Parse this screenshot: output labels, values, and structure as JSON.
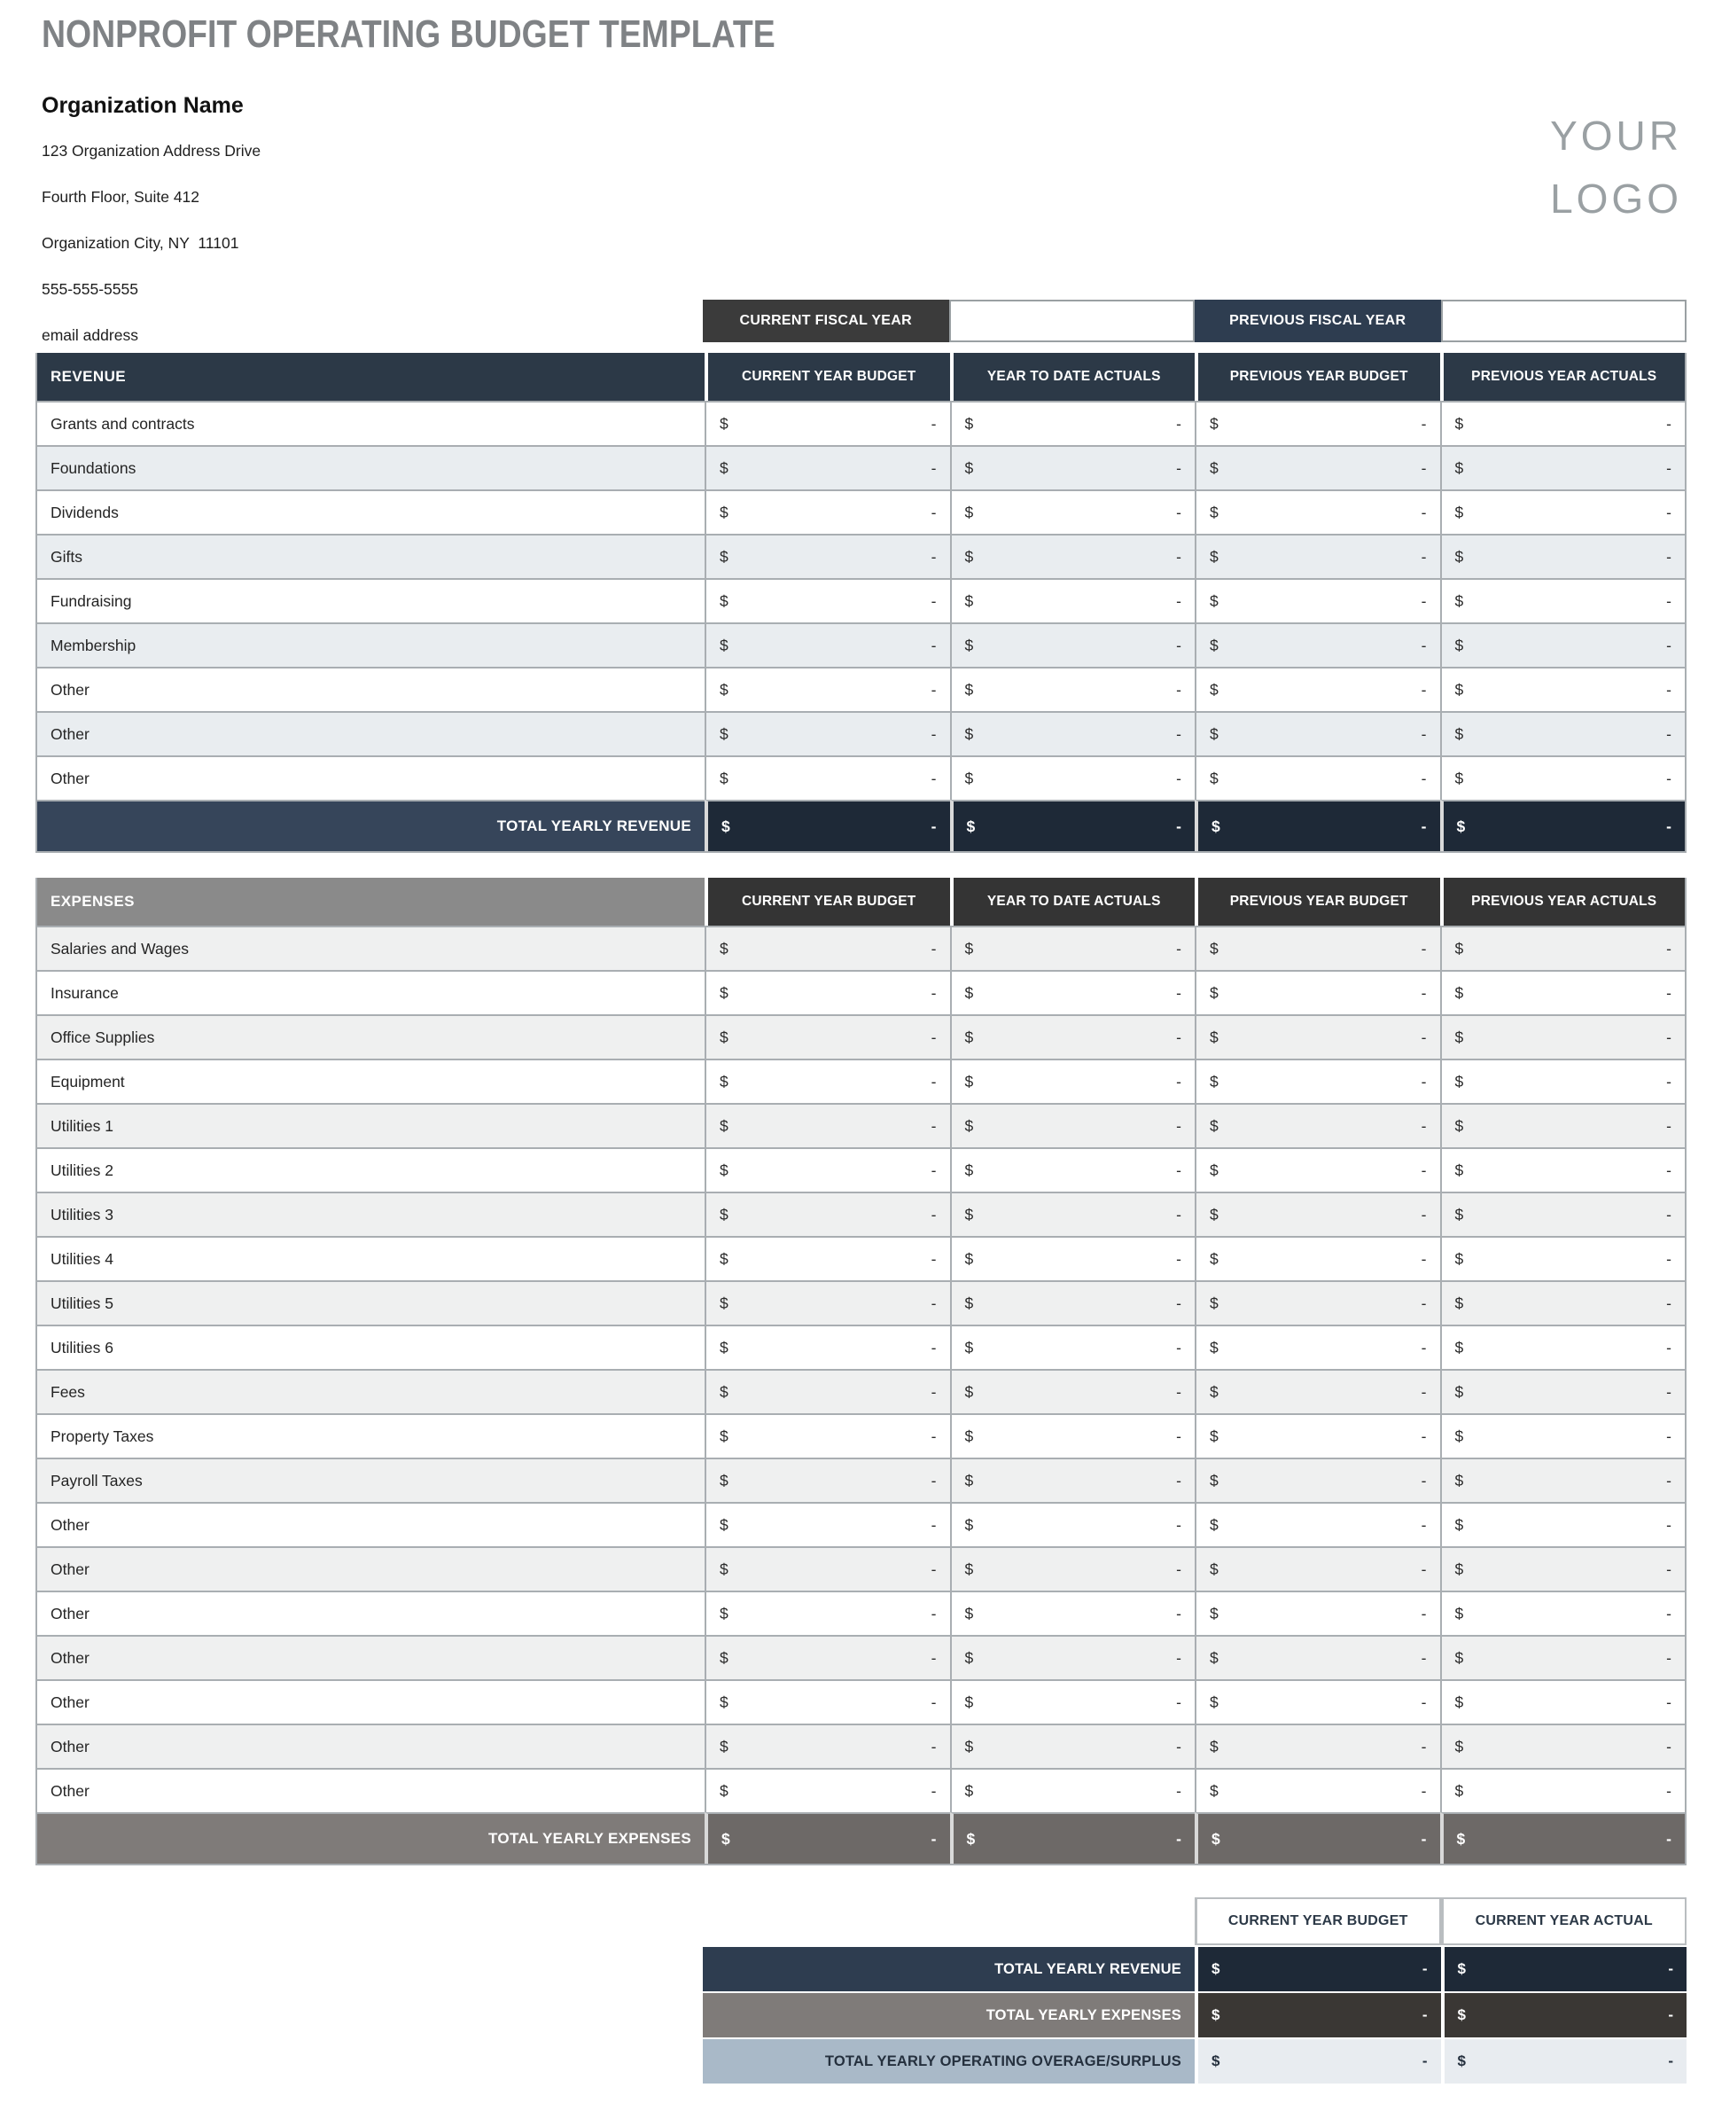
{
  "page": {
    "title": "NONPROFIT OPERATING BUDGET TEMPLATE"
  },
  "org": {
    "name": "Organization Name",
    "address_line1": "123 Organization Address Drive",
    "address_line2": "Fourth Floor, Suite 412",
    "address_line3": "Organization City, NY  11101",
    "phone": "555-555-5555",
    "email": "email address"
  },
  "logo": {
    "line1": "YOUR",
    "line2": "LOGO"
  },
  "fiscal_year_bar": {
    "current_label": "CURRENT FISCAL YEAR",
    "current_value": "",
    "previous_label": "PREVIOUS FISCAL YEAR",
    "previous_value": ""
  },
  "value_columns": [
    "CURRENT YEAR BUDGET",
    "YEAR TO DATE ACTUALS",
    "PREVIOUS YEAR BUDGET",
    "PREVIOUS YEAR ACTUALS"
  ],
  "cell_defaults": {
    "currency": "$",
    "amount": "-"
  },
  "revenue": {
    "section_label": "REVENUE",
    "rows": [
      "Grants and contracts",
      "Foundations",
      "Dividends",
      "Gifts",
      "Fundraising",
      "Membership",
      "Other",
      "Other",
      "Other"
    ],
    "first_row_shaded": false,
    "total_label": "TOTAL YEARLY REVENUE"
  },
  "expenses": {
    "section_label": "EXPENSES",
    "rows": [
      "Salaries and Wages",
      "Insurance",
      "Office Supplies",
      "Equipment",
      "Utilities 1",
      "Utilities 2",
      "Utilities 3",
      "Utilities 4",
      "Utilities 5",
      "Utilities 6",
      "Fees",
      "Property Taxes",
      "Payroll Taxes",
      "Other",
      "Other",
      "Other",
      "Other",
      "Other",
      "Other",
      "Other"
    ],
    "first_row_shaded": true,
    "total_label": "TOTAL YEARLY EXPENSES"
  },
  "summary": {
    "columns": [
      "CURRENT YEAR BUDGET",
      "CURRENT YEAR ACTUAL"
    ],
    "rows": [
      {
        "label": "TOTAL YEARLY REVENUE",
        "style": "revenue"
      },
      {
        "label": "TOTAL YEARLY EXPENSES",
        "style": "expenses"
      },
      {
        "label": "TOTAL YEARLY OPERATING OVERAGE/SURPLUS",
        "style": "surplus"
      }
    ]
  },
  "colors": {
    "navy_header": "#2c3947",
    "navy_total_label": "#36455a",
    "navy_total_value": "#1e2937",
    "charcoal_fiscal": "#3b3b3b",
    "navy_fiscal": "#2e3d50",
    "gray_section": "#8a8a8a",
    "charcoal_col_header": "#343434",
    "gray_total_label": "#7f7b79",
    "gray_total_value": "#6d6967",
    "summary_expense_value": "#3a3734",
    "surplus_label": "#a9b9c8",
    "surplus_value": "#e8ecf0",
    "row_alt_revenue": "#e9edf0",
    "row_alt_expense": "#eff0f0",
    "border": "#a9aeb2",
    "title_gray": "#7f8285",
    "logo_gray": "#9aa0a3"
  }
}
